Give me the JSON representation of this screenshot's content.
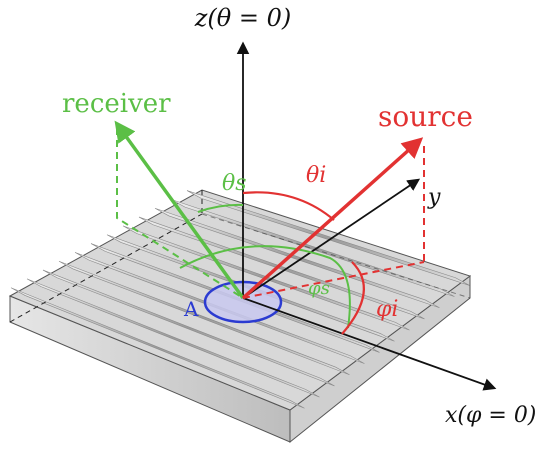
{
  "labels": {
    "z_axis": "z(θ = 0)",
    "x_axis": "x(φ = 0)",
    "y_axis": "y",
    "receiver": "receiver",
    "source": "source",
    "area": "A",
    "theta_s": "θs",
    "theta_i": "θi",
    "phi_s": "φs",
    "phi_i": "φi"
  },
  "colors": {
    "receiver": "#5bbf46",
    "source": "#e23232",
    "axis": "#111111",
    "area_fill": "#c9c9f0",
    "area_stroke": "#2b3bd1",
    "surface": "#cfcfcf"
  }
}
